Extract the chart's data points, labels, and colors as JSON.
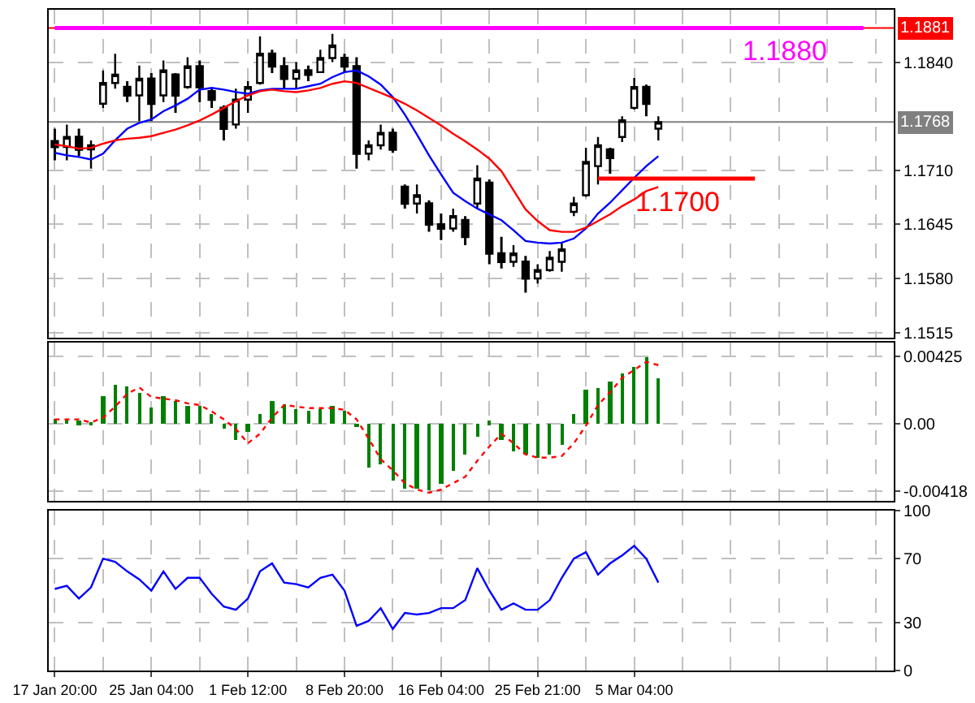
{
  "chart_data": [
    {
      "type": "candlestick",
      "color": "#000000",
      "grid": true,
      "tick_labels": "y",
      "ylim": [
        1.1509,
        1.1903
      ],
      "categories": [
        null,
        null,
        null,
        null,
        null,
        null,
        null,
        null,
        null,
        null,
        null,
        null,
        null,
        null,
        null,
        null,
        null,
        null,
        null,
        null,
        null,
        null,
        null,
        null,
        null,
        null,
        null,
        null,
        null,
        null,
        null,
        null,
        null,
        null,
        null,
        null,
        null,
        null,
        null,
        null,
        null,
        null,
        null,
        null,
        null,
        null,
        null,
        null,
        null,
        null,
        null,
        null,
        null,
        null,
        null,
        null,
        null,
        null,
        null,
        null,
        null,
        null,
        null,
        null,
        null,
        null,
        null,
        null,
        null,
        null
      ],
      "yticks": [
        {
          "value": 1.1515,
          "label": "1.1515"
        },
        {
          "value": 1.158,
          "label": "1.1580"
        },
        {
          "value": 1.1645,
          "label": "1.1645"
        },
        {
          "value": 1.171,
          "label": "1.1710"
        },
        {
          "value": 1.184,
          "label": "1.1840"
        }
      ],
      "ohlc": [
        [
          1.1745,
          1.176,
          1.1722,
          1.1738
        ],
        [
          1.1738,
          1.1765,
          1.1722,
          1.175
        ],
        [
          1.175,
          1.176,
          1.1727,
          1.1735
        ],
        [
          1.1735,
          1.1746,
          1.1712,
          1.174
        ],
        [
          1.179,
          1.183,
          1.1785,
          1.1815
        ],
        [
          1.1815,
          1.185,
          1.1808,
          1.1825
        ],
        [
          1.181,
          1.1817,
          1.1792,
          1.18
        ],
        [
          1.18,
          1.1836,
          1.1769,
          1.182
        ],
        [
          1.182,
          1.1827,
          1.1769,
          1.179
        ],
        [
          1.18,
          1.1842,
          1.1792,
          1.183
        ],
        [
          1.1825,
          1.1827,
          1.1779,
          1.18
        ],
        [
          1.181,
          1.1846,
          1.1808,
          1.1835
        ],
        [
          1.1835,
          1.1842,
          1.1792,
          1.181
        ],
        [
          1.1805,
          1.1808,
          1.1785,
          1.1795
        ],
        [
          1.1785,
          1.1788,
          1.1746,
          1.176
        ],
        [
          1.1765,
          1.1808,
          1.176,
          1.1795
        ],
        [
          1.1795,
          1.1817,
          1.1779,
          1.181
        ],
        [
          1.1815,
          1.1871,
          1.1813,
          1.185
        ],
        [
          1.185,
          1.1855,
          1.1827,
          1.1835
        ],
        [
          1.1835,
          1.1846,
          1.1808,
          1.182
        ],
        [
          1.182,
          1.184,
          1.1808,
          1.183
        ],
        [
          1.183,
          1.1836,
          1.1817,
          1.1825
        ],
        [
          1.1828,
          1.1855,
          1.1827,
          1.1845
        ],
        [
          1.1845,
          1.1874,
          1.184,
          1.186
        ],
        [
          1.1845,
          1.185,
          1.1827,
          1.1835
        ],
        [
          1.1835,
          1.1846,
          1.1712,
          1.173
        ],
        [
          1.173,
          1.1746,
          1.1722,
          1.174
        ],
        [
          1.174,
          1.1765,
          1.1735,
          1.1755
        ],
        [
          1.1755,
          1.176,
          1.1731,
          1.1735
        ],
        [
          1.169,
          1.1693,
          1.1664,
          1.167
        ],
        [
          1.167,
          1.1693,
          1.1658,
          1.168
        ],
        [
          1.167,
          1.1674,
          1.1636,
          1.1645
        ],
        [
          1.1645,
          1.1658,
          1.1626,
          1.164
        ],
        [
          1.164,
          1.1664,
          1.1636,
          1.1655
        ],
        [
          1.165,
          1.1655,
          1.162,
          1.163
        ],
        [
          1.167,
          1.1716,
          1.1664,
          1.17
        ],
        [
          1.1695,
          1.1699,
          1.1597,
          1.161
        ],
        [
          1.161,
          1.163,
          1.1592,
          1.16
        ],
        [
          1.16,
          1.162,
          1.1594,
          1.161
        ],
        [
          1.16,
          1.1607,
          1.1563,
          1.158
        ],
        [
          1.158,
          1.1597,
          1.1574,
          1.159
        ],
        [
          1.159,
          1.1613,
          1.1588,
          1.1605
        ],
        [
          1.16,
          1.1622,
          1.1588,
          1.1615
        ],
        [
          1.166,
          1.1678,
          1.1655,
          1.167
        ],
        [
          1.168,
          1.1737,
          1.1678,
          1.172
        ],
        [
          1.1715,
          1.175,
          1.1693,
          1.174
        ],
        [
          1.1735,
          1.1737,
          1.1706,
          1.1725
        ],
        [
          1.175,
          1.1775,
          1.1744,
          1.177
        ],
        [
          1.1785,
          1.1821,
          1.1783,
          1.181
        ],
        [
          1.181,
          1.1813,
          1.1775,
          1.179
        ],
        [
          1.176,
          1.1775,
          1.1746,
          1.1768
        ],
        null,
        null,
        null,
        null,
        null,
        null,
        null,
        null,
        null,
        null,
        null,
        null,
        null,
        null,
        null,
        null,
        null,
        null,
        null
      ],
      "series": [
        {
          "type": "line",
          "color": "#0000ff",
          "values": [
            1.1731,
            1.1728,
            1.1726,
            1.1723,
            1.173,
            1.1746,
            1.176,
            1.1767,
            1.1771,
            1.1781,
            1.1788,
            1.1796,
            1.1807,
            1.1809,
            1.1807,
            1.1804,
            1.1802,
            1.1806,
            1.1808,
            1.1808,
            1.1808,
            1.1811,
            1.1814,
            1.1822,
            1.1828,
            1.183,
            1.1823,
            1.1813,
            1.1798,
            1.1777,
            1.1753,
            1.1728,
            1.1705,
            1.1683,
            1.1673,
            1.1664,
            1.1657,
            1.165,
            1.1638,
            1.1625,
            1.1623,
            1.1622,
            1.1623,
            1.1628,
            1.164,
            1.1658,
            1.1671,
            1.1686,
            1.1701,
            1.1715,
            1.1727,
            null,
            null,
            null,
            null,
            null,
            null,
            null,
            null,
            null,
            null,
            null,
            null,
            null,
            null,
            null,
            null,
            null,
            null,
            null
          ]
        },
        {
          "type": "line",
          "color": "#ff0000",
          "values": [
            1.1741,
            1.1739,
            1.1736,
            1.1737,
            1.1742,
            1.1746,
            1.1748,
            1.1749,
            1.1751,
            1.1755,
            1.1759,
            1.1764,
            1.177,
            1.1777,
            1.1785,
            1.1793,
            1.18,
            1.1805,
            1.1807,
            1.1805,
            1.1804,
            1.1806,
            1.1809,
            1.1814,
            1.1817,
            1.1815,
            1.1809,
            1.1803,
            1.1797,
            1.179,
            1.1782,
            1.1773,
            1.1764,
            1.1754,
            1.1745,
            1.1735,
            1.1724,
            1.1709,
            1.1686,
            1.1663,
            1.1649,
            1.1638,
            1.1636,
            1.1636,
            1.1641,
            1.1649,
            1.1657,
            1.1667,
            1.1675,
            1.1685,
            1.169,
            null,
            null,
            null,
            null,
            null,
            null,
            null,
            null,
            null,
            null,
            null,
            null,
            null,
            null,
            null,
            null,
            null,
            null,
            null
          ]
        },
        {
          "type": "line",
          "color": "#ff0000",
          "name": "1.1700",
          "values": [
            null,
            null,
            null,
            null,
            null,
            null,
            null,
            null,
            null,
            null,
            null,
            null,
            null,
            null,
            null,
            null,
            null,
            null,
            null,
            null,
            null,
            null,
            null,
            null,
            null,
            null,
            null,
            null,
            null,
            null,
            null,
            null,
            null,
            null,
            null,
            null,
            null,
            null,
            null,
            null,
            null,
            null,
            null,
            null,
            null,
            1.17,
            1.17,
            1.17,
            1.17,
            1.17,
            1.17,
            1.17,
            1.17,
            1.17,
            1.17,
            1.17,
            1.17,
            1.17,
            1.17,
            null,
            null,
            null,
            null,
            null,
            null,
            null,
            null,
            null,
            null,
            null
          ]
        },
        {
          "type": "line",
          "color": "#ff00ff",
          "name": "1.1880",
          "values": [
            1.1881,
            1.1881,
            1.1881,
            1.1881,
            1.1881,
            1.1881,
            1.1881,
            1.1881,
            1.1881,
            1.1881,
            1.1881,
            1.1881,
            1.1881,
            1.1881,
            1.1881,
            1.1881,
            1.1881,
            1.1881,
            1.1881,
            1.1881,
            1.1881,
            1.1881,
            1.1881,
            1.1881,
            1.1881,
            1.1881,
            1.1881,
            1.1881,
            1.1881,
            1.1881,
            1.1881,
            1.1881,
            1.1881,
            1.1881,
            1.1881,
            1.1881,
            1.1881,
            1.1881,
            1.1881,
            1.1881,
            1.1881,
            1.1881,
            1.1881,
            1.1881,
            1.1881,
            1.1881,
            1.1881,
            1.1881,
            1.1881,
            1.1881,
            1.1881,
            1.1881,
            1.1881,
            1.1881,
            1.1881,
            1.1881,
            1.1881,
            1.1881,
            1.1881,
            1.1881,
            1.1881,
            1.1881,
            1.1881,
            1.1881,
            1.1881,
            1.1881,
            1.1881,
            1.1881,
            null,
            null
          ]
        }
      ],
      "ref_lines": [
        {
          "axis": "y",
          "value": 1.1881,
          "label": "1.1881",
          "color": "#ff0000"
        },
        {
          "axis": "y",
          "value": 1.1768,
          "label": "1.1768",
          "color": "#808080"
        }
      ]
    },
    {
      "type": "bar",
      "grid": true,
      "tick_labels": "y",
      "ylim": [
        -0.0048,
        0.0051
      ],
      "categories": [
        null,
        null,
        null,
        null,
        null,
        null,
        null,
        null,
        null,
        null,
        null,
        null,
        null,
        null,
        null,
        null,
        null,
        null,
        null,
        null,
        null,
        null,
        null,
        null,
        null,
        null,
        null,
        null,
        null,
        null,
        null,
        null,
        null,
        null,
        null,
        null,
        null,
        null,
        null,
        null,
        null,
        null,
        null,
        null,
        null,
        null,
        null,
        null,
        null,
        null,
        null,
        null,
        null,
        null,
        null,
        null,
        null,
        null,
        null,
        null,
        null,
        null,
        null,
        null,
        null,
        null,
        null,
        null,
        null,
        null
      ],
      "yticks": [
        {
          "value": 0.00425,
          "label": "0.00425"
        },
        {
          "value": 0,
          "label": "0.00"
        },
        {
          "value": -0.00418,
          "label": "-0.00418"
        }
      ],
      "series": [
        {
          "type": "bar",
          "color": "#008000",
          "values": [
            0.0003,
            0.0003,
            0.0002,
            0.0001,
            0.0017,
            0.0025,
            0.0024,
            0.0019,
            0.001,
            0.0017,
            0.0014,
            0.0011,
            0.0011,
            0.0006,
            -0.0003,
            -0.001,
            -0.0005,
            0.0006,
            0.0014,
            0.0012,
            0.0009,
            0.0008,
            0.0009,
            0.0011,
            0.0008,
            -0.0002,
            -0.0027,
            -0.0025,
            -0.0035,
            -0.0041,
            -0.0041,
            -0.0042,
            -0.0038,
            -0.0029,
            -0.0019,
            -0.0008,
            0.0002,
            -0.001,
            -0.0017,
            -0.0019,
            -0.0021,
            -0.0019,
            -0.0013,
            0.0006,
            0.0021,
            0.0023,
            0.0027,
            0.0032,
            0.0036,
            0.0042,
            0.0029,
            null,
            null,
            null,
            null,
            null,
            null,
            null,
            null,
            null,
            null,
            null,
            null,
            null,
            null,
            null,
            null,
            null,
            null,
            null
          ]
        },
        {
          "type": "line",
          "color": "#ff0000",
          "line_style": "dotted",
          "values": [
            0.0003,
            0.0003,
            0.0003,
            0.0001,
            0.0004,
            0.0011,
            0.0019,
            0.0023,
            0.0017,
            0.0016,
            0.0015,
            0.0013,
            0.0012,
            0.0008,
            0.0003,
            -0.0003,
            -0.0012,
            -0.0006,
            0.0004,
            0.0012,
            0.0011,
            0.001,
            0.001,
            0.001,
            0.0009,
            0.0003,
            -0.0009,
            -0.0022,
            -0.0029,
            -0.0037,
            -0.0041,
            -0.0043,
            -0.0041,
            -0.0037,
            -0.0033,
            -0.0023,
            -0.0014,
            -0.0006,
            -0.0012,
            -0.0019,
            -0.0021,
            -0.0021,
            -0.002,
            -0.0012,
            -0.0001,
            0.0012,
            0.002,
            0.0029,
            0.0034,
            0.0039,
            0.0037,
            null,
            null,
            null,
            null,
            null,
            null,
            null,
            null,
            null,
            null,
            null,
            null,
            null,
            null,
            null,
            null,
            null,
            null,
            null
          ]
        }
      ]
    },
    {
      "type": "line",
      "grid": true,
      "ylim": [
        0,
        100
      ],
      "categories": [
        "17 Jan 20:00",
        null,
        null,
        null,
        null,
        null,
        null,
        null,
        "25 Jan 04:00",
        null,
        null,
        null,
        null,
        null,
        null,
        null,
        "1 Feb 12:00",
        null,
        null,
        null,
        null,
        null,
        null,
        null,
        "8 Feb 20:00",
        null,
        null,
        null,
        null,
        null,
        null,
        null,
        "16 Feb 04:00",
        null,
        null,
        null,
        null,
        null,
        null,
        null,
        "25 Feb 21:00",
        null,
        null,
        null,
        null,
        null,
        null,
        null,
        "5 Mar 04:00",
        null,
        null,
        null,
        null,
        null,
        null,
        null,
        null,
        null,
        null,
        null,
        null,
        null,
        null,
        null,
        null,
        null,
        null,
        null,
        null,
        null
      ],
      "yticks": [
        0,
        30,
        70,
        100
      ],
      "series": [
        {
          "type": "line",
          "color": "#0000ff",
          "values": [
            51,
            53,
            45,
            52,
            70,
            68,
            62,
            57,
            50,
            62,
            51,
            58,
            58,
            48,
            40,
            38,
            45,
            62,
            67,
            55,
            54,
            52,
            58,
            60,
            50,
            28,
            31,
            39,
            26,
            36,
            35,
            36,
            39,
            39,
            44,
            64,
            50,
            38,
            42,
            38,
            38,
            44,
            58,
            70,
            74,
            60,
            67,
            72,
            78,
            70,
            55,
            null,
            null,
            null,
            null,
            null,
            null,
            null,
            null,
            null,
            null,
            null,
            null,
            null,
            null,
            null,
            null,
            null,
            null,
            null
          ]
        }
      ]
    }
  ]
}
